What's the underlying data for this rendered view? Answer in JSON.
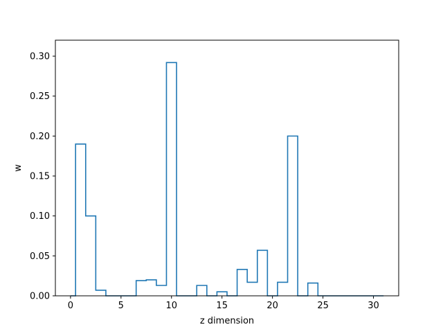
{
  "chart_data": {
    "type": "step",
    "title": "",
    "xlabel": "z dimension",
    "ylabel": "w",
    "xlim": [
      -1.5,
      32.5
    ],
    "ylim": [
      0,
      0.32
    ],
    "xticks": [
      0,
      5,
      10,
      15,
      20,
      25,
      30
    ],
    "yticks": [
      0.0,
      0.05,
      0.1,
      0.15,
      0.2,
      0.25,
      0.3
    ],
    "xtick_labels": [
      "0",
      "5",
      "10",
      "15",
      "20",
      "25",
      "30"
    ],
    "ytick_labels": [
      "0.00",
      "0.05",
      "0.10",
      "0.15",
      "0.20",
      "0.25",
      "0.30"
    ],
    "grid": false,
    "line_color": "#1f77b4",
    "series": [
      {
        "step_where": "mid",
        "x": [
          0,
          1,
          2,
          3,
          4,
          5,
          6,
          7,
          8,
          9,
          10,
          11,
          12,
          13,
          14,
          15,
          16,
          17,
          18,
          19,
          20,
          21,
          22,
          23,
          24,
          25,
          26,
          27,
          28,
          29,
          30,
          31
        ],
        "values": [
          0.0,
          0.19,
          0.1,
          0.007,
          0.0,
          0.0,
          0.0,
          0.019,
          0.02,
          0.013,
          0.292,
          0.0,
          0.0,
          0.013,
          0.0,
          0.005,
          0.0,
          0.033,
          0.017,
          0.057,
          0.0,
          0.017,
          0.2,
          0.0,
          0.016,
          0.0,
          0.0,
          0.0,
          0.0,
          0.0,
          0.0,
          0.0
        ]
      }
    ]
  }
}
